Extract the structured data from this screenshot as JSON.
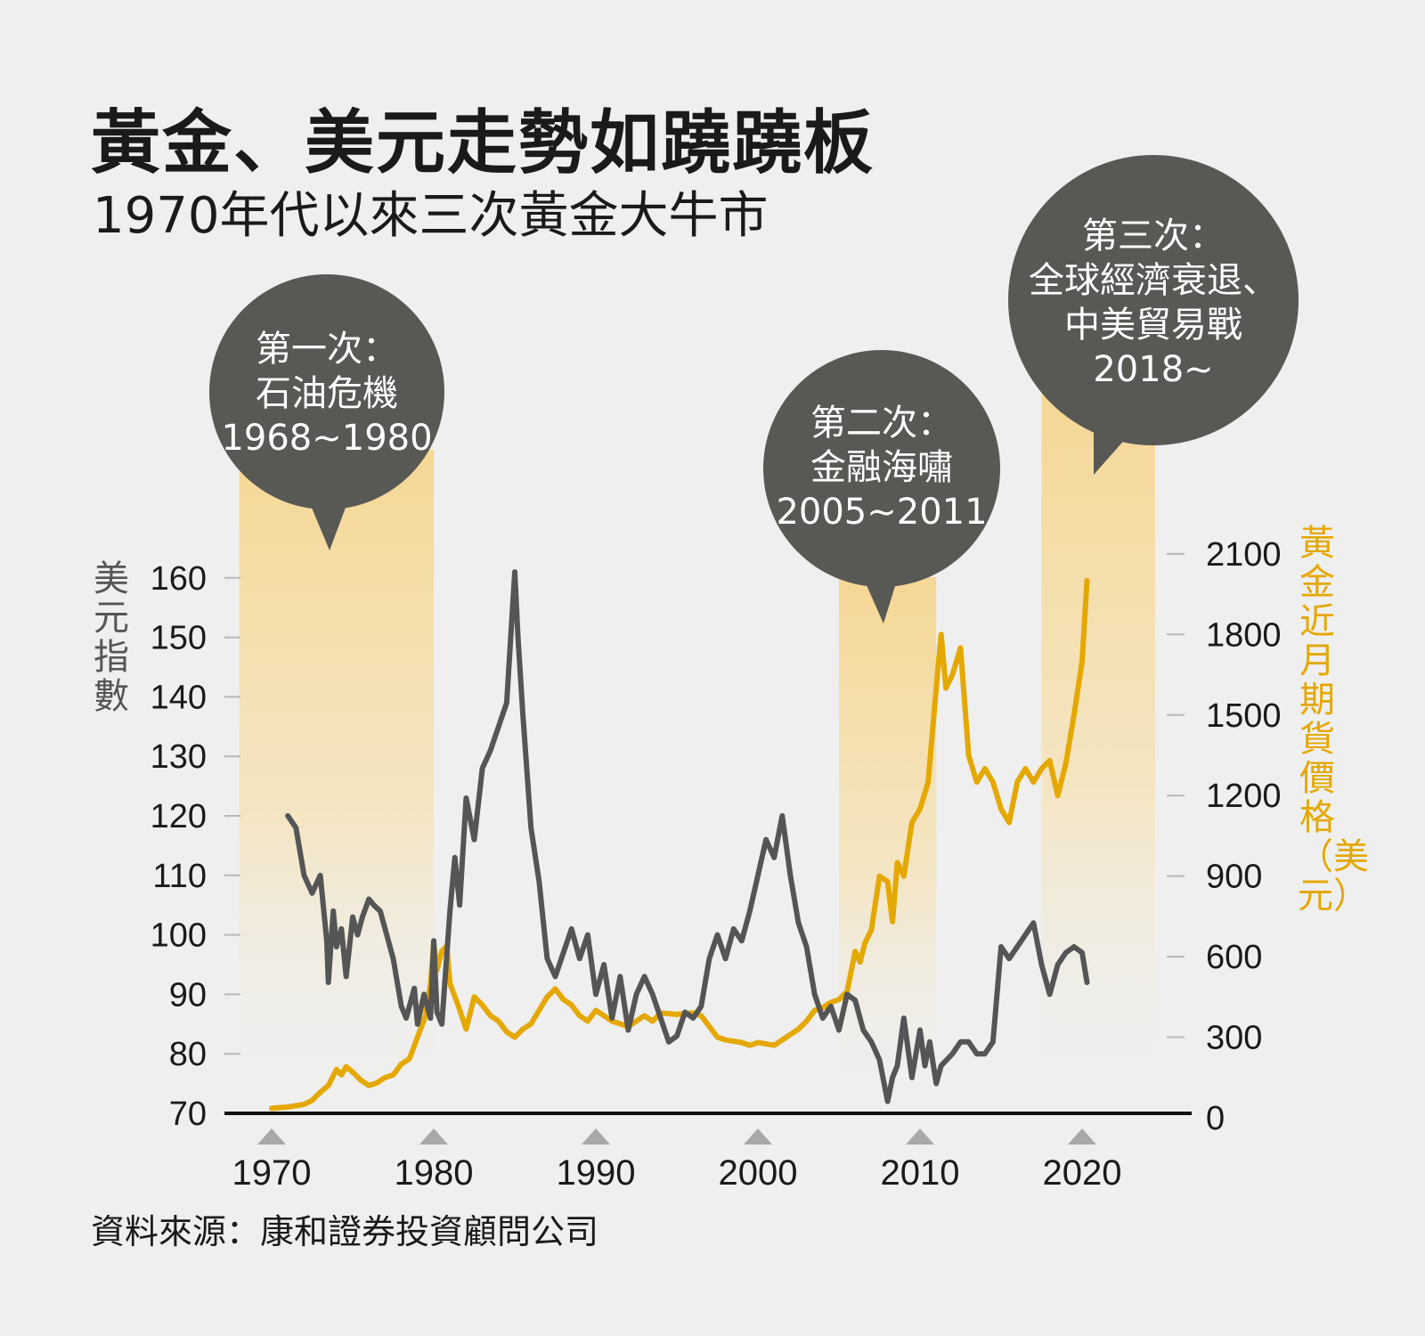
{
  "title": "黃金、美元走勢如蹺蹺板",
  "subtitle": "1970年代以來三次黃金大牛市",
  "source": "資料來源：康和證券投資顧問公司",
  "colors": {
    "background": "#efefef",
    "dollar_line": "#555555",
    "gold_line": "#e4a800",
    "band": "#f5dc9e",
    "bubble": "#585855",
    "text_dark": "#1a1a1a"
  },
  "chart_data": {
    "type": "line",
    "xlabel": "",
    "x_ticks": [
      1970,
      1980,
      1990,
      2000,
      2010,
      2020
    ],
    "xlim": [
      1970,
      2026
    ],
    "y_left": {
      "label": "美元指數",
      "ticks": [
        70,
        80,
        90,
        100,
        110,
        120,
        130,
        140,
        150,
        160
      ],
      "lim": [
        70,
        161
      ]
    },
    "y_right": {
      "label": "黃金近月期貨價格（美元）",
      "ticks": [
        0,
        300,
        600,
        900,
        1200,
        1500,
        1800,
        2100
      ],
      "lim": [
        0,
        2100
      ]
    },
    "series": [
      {
        "name": "美元指數",
        "axis": "left",
        "color": "#555555",
        "x": [
          1971,
          1971.5,
          1972,
          1972.5,
          1973,
          1973.4,
          1973.5,
          1973.6,
          1973.8,
          1974,
          1974.3,
          1974.6,
          1975,
          1975.3,
          1975.6,
          1976,
          1976.3,
          1976.7,
          1977,
          1977.5,
          1978,
          1978.3,
          1978.8,
          1979,
          1979.4,
          1979.8,
          1980,
          1980.2,
          1980.5,
          1981,
          1981.3,
          1981.6,
          1982,
          1982.5,
          1983,
          1983.5,
          1984,
          1984.5,
          1985,
          1985.2,
          1985.5,
          1986,
          1986.5,
          1987,
          1987.5,
          1988,
          1988.5,
          1989,
          1989.5,
          1990,
          1990.5,
          1991,
          1991.5,
          1992,
          1992.5,
          1993,
          1993.5,
          1994,
          1994.5,
          1995,
          1995.5,
          1996,
          1996.5,
          1997,
          1997.5,
          1998,
          1998.5,
          1999,
          1999.5,
          2000,
          2000.5,
          2001,
          2001.5,
          2002,
          2002.5,
          2003,
          2003.5,
          2004,
          2004.5,
          2005,
          2005.5,
          2006,
          2006.5,
          2007,
          2007.5,
          2008,
          2008.3,
          2008.6,
          2009,
          2009.5,
          2010,
          2010.3,
          2010.6,
          2011,
          2011.3,
          2012,
          2012.5,
          2013,
          2013.5,
          2014,
          2014.5,
          2015,
          2015.5,
          2016,
          2016.5,
          2017,
          2017.5,
          2018,
          2018.5,
          2019,
          2019.5,
          2020,
          2020.3
        ],
        "values": [
          120,
          118,
          110,
          107,
          110,
          99,
          92,
          96,
          104,
          98,
          101,
          93,
          103,
          100,
          103,
          106,
          105,
          104,
          101,
          96,
          88,
          86,
          91,
          85,
          90,
          86,
          99,
          87,
          85,
          104,
          113,
          105,
          123,
          116,
          128,
          131,
          135,
          139,
          161,
          150,
          137,
          118,
          109,
          96,
          93,
          97,
          101,
          96,
          100,
          90,
          95,
          86,
          93,
          84,
          90,
          93,
          90,
          86,
          82,
          83,
          87,
          86,
          88,
          96,
          100,
          96,
          101,
          99,
          104,
          110,
          116,
          113,
          120,
          110,
          102,
          98,
          90,
          86,
          88,
          84,
          90,
          89,
          84,
          82,
          79,
          72,
          76,
          78,
          86,
          76,
          84,
          78,
          82,
          75,
          78,
          80,
          82,
          82,
          80,
          80,
          82,
          98,
          96,
          98,
          100,
          102,
          95,
          90,
          95,
          97,
          98,
          97,
          92
        ],
        "note": ""
      },
      {
        "name": "黃金近月期貨價格",
        "axis": "right",
        "color": "#e4a800",
        "x": [
          1970,
          1971,
          1972,
          1972.5,
          1973,
          1973.5,
          1974,
          1974.3,
          1974.6,
          1975,
          1975.5,
          1976,
          1976.5,
          1977,
          1977.5,
          1978,
          1978.5,
          1979,
          1979.5,
          1979.8,
          1980,
          1980.2,
          1980.5,
          1980.8,
          1981,
          1981.5,
          1982,
          1982.5,
          1983,
          1983.5,
          1984,
          1984.5,
          1985,
          1985.5,
          1986,
          1986.5,
          1987,
          1987.5,
          1988,
          1988.5,
          1989,
          1989.5,
          1990,
          1990.5,
          1991,
          1992,
          1993,
          1993.5,
          1994,
          1995,
          1996,
          1996.5,
          1997,
          1997.5,
          1998,
          1999,
          1999.5,
          2000,
          2001,
          2001.5,
          2002,
          2002.5,
          2003,
          2003.5,
          2004,
          2004.5,
          2005,
          2005.5,
          2006,
          2006.3,
          2006.6,
          2007,
          2007.5,
          2008,
          2008.3,
          2008.6,
          2009,
          2009.5,
          2010,
          2010.5,
          2011,
          2011.3,
          2011.6,
          2012,
          2012.5,
          2013,
          2013.5,
          2014,
          2014.5,
          2015,
          2015.5,
          2016,
          2016.5,
          2017,
          2017.5,
          2018,
          2018.5,
          2019,
          2019.5,
          2020,
          2020.3
        ],
        "values": [
          35,
          40,
          50,
          65,
          95,
          120,
          180,
          160,
          190,
          170,
          140,
          120,
          130,
          150,
          160,
          200,
          220,
          300,
          380,
          500,
          650,
          550,
          620,
          640,
          500,
          420,
          330,
          450,
          420,
          380,
          360,
          320,
          300,
          330,
          350,
          400,
          450,
          480,
          440,
          420,
          380,
          360,
          400,
          380,
          360,
          340,
          380,
          360,
          390,
          385,
          390,
          380,
          340,
          300,
          290,
          280,
          270,
          280,
          270,
          290,
          310,
          330,
          360,
          400,
          410,
          430,
          440,
          470,
          620,
          580,
          650,
          700,
          900,
          880,
          730,
          950,
          900,
          1100,
          1150,
          1250,
          1600,
          1800,
          1600,
          1650,
          1750,
          1350,
          1250,
          1300,
          1250,
          1150,
          1100,
          1250,
          1300,
          1250,
          1300,
          1330,
          1200,
          1320,
          1500,
          1700,
          2000
        ],
        "note": ""
      }
    ],
    "highlight_bands": [
      {
        "start": 1968,
        "end": 1980,
        "bubble": [
          "第一次：",
          "石油危機",
          "1968~1980"
        ]
      },
      {
        "start": 2005,
        "end": 2011,
        "bubble": [
          "第二次：",
          "金融海嘯",
          "2005~2011"
        ]
      },
      {
        "start": 2017.5,
        "end": 2024.5,
        "bubble": [
          "第三次：",
          "全球經濟衰退、",
          "中美貿易戰",
          "2018~"
        ]
      }
    ]
  }
}
